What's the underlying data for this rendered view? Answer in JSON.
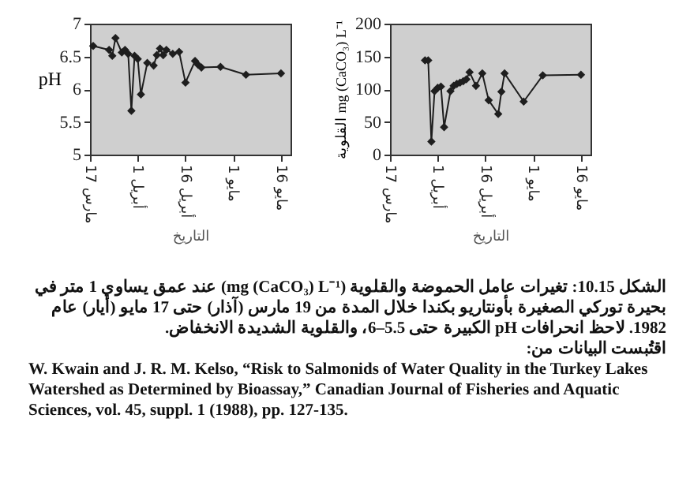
{
  "chart_data": [
    {
      "type": "line",
      "ylabel": "pH",
      "xlabel": "التاريخ",
      "x": [
        "1982-03-18",
        "1982-03-23",
        "1982-03-24",
        "1982-03-25",
        "1982-03-27",
        "1982-03-28",
        "1982-03-29",
        "1982-03-30",
        "1982-03-31",
        "1982-04-01",
        "1982-04-02",
        "1982-04-04",
        "1982-04-06",
        "1982-04-07",
        "1982-04-08",
        "1982-04-09",
        "1982-04-10",
        "1982-04-12",
        "1982-04-14",
        "1982-04-16",
        "1982-04-19",
        "1982-04-20",
        "1982-04-21",
        "1982-04-27",
        "1982-05-05",
        "1982-05-16"
      ],
      "series": [
        {
          "color": "#1e1e1e",
          "values": [
            6.66,
            6.6,
            6.51,
            6.78,
            6.56,
            6.6,
            6.54,
            5.67,
            6.51,
            6.46,
            5.92,
            6.4,
            6.36,
            6.52,
            6.62,
            6.52,
            6.6,
            6.54,
            6.57,
            6.1,
            6.43,
            6.37,
            6.33,
            6.34,
            6.22,
            6.24
          ]
        }
      ],
      "xlim": [
        "1982-03-17",
        "1982-05-19"
      ],
      "ylim": [
        5,
        7
      ],
      "yticks": [
        5,
        5.5,
        6,
        6.5,
        7
      ],
      "xticks": [
        {
          "value": "1982-03-17",
          "label": "17 مارس"
        },
        {
          "value": "1982-04-01",
          "label": "1 أبريل"
        },
        {
          "value": "1982-04-16",
          "label": "16 أبريل"
        },
        {
          "value": "1982-05-01",
          "label": "1 مايو"
        },
        {
          "value": "1982-05-16",
          "label": "16 مايو"
        }
      ],
      "marker": "diamond",
      "grid": false,
      "annotations": [
        "الشكل 10.15: تغيرات عامل الحموضة والقلوية (mg (CaCO₃) L⁻¹) عند عمق يساوي 1 متر في بحيرة توركي الصغيرة بأونتاريو بكندا خلال المدة من 19 مارس (آذار) حتى 17 مايو (أيار) عام 1982. لاحظ انحرافات pH الكبيرة حتى 5.5–6، والقلوية الشديدة الانخفاض.",
        "اقتُبست البيانات من:",
        "W. Kwain and J. R. M. Kelso, “Risk to Salmonids of Water Quality in the Turkey Lakes Watershed as Determined by Bioassay,” Canadian Journal of Fisheries and Aquatic Sciences, vol. 45, suppl. 1 (1988), pp. 127-135."
      ]
    },
    {
      "type": "line",
      "ylabel": "القلوية mg (CaCO₃) L⁻¹",
      "xlabel": "التاريخ",
      "x": [
        "1982-03-28",
        "1982-03-29",
        "1982-03-30",
        "1982-03-31",
        "1982-04-01",
        "1982-04-02",
        "1982-04-03",
        "1982-04-05",
        "1982-04-06",
        "1982-04-07",
        "1982-04-08",
        "1982-04-09",
        "1982-04-10",
        "1982-04-11",
        "1982-04-13",
        "1982-04-15",
        "1982-04-17",
        "1982-04-20",
        "1982-04-21",
        "1982-04-22",
        "1982-04-28",
        "1982-05-04",
        "1982-05-16"
      ],
      "series": [
        {
          "color": "#1e1e1e",
          "values": [
            144,
            144,
            20,
            97,
            102,
            104,
            42,
            97,
            105,
            108,
            110,
            112,
            115,
            126,
            105,
            124,
            83,
            62,
            96,
            124,
            81,
            121,
            122
          ]
        }
      ],
      "xlim": [
        "1982-03-17",
        "1982-05-19"
      ],
      "ylim": [
        0,
        200
      ],
      "yticks": [
        0,
        50,
        100,
        150,
        200
      ],
      "xticks": [
        {
          "value": "1982-03-17",
          "label": "17 مارس"
        },
        {
          "value": "1982-04-01",
          "label": "1 أبريل"
        },
        {
          "value": "1982-04-16",
          "label": "16 أبريل"
        },
        {
          "value": "1982-05-01",
          "label": "1 مايو"
        },
        {
          "value": "1982-05-16",
          "label": "16 مايو"
        }
      ],
      "marker": "diamond",
      "grid": false
    }
  ]
}
